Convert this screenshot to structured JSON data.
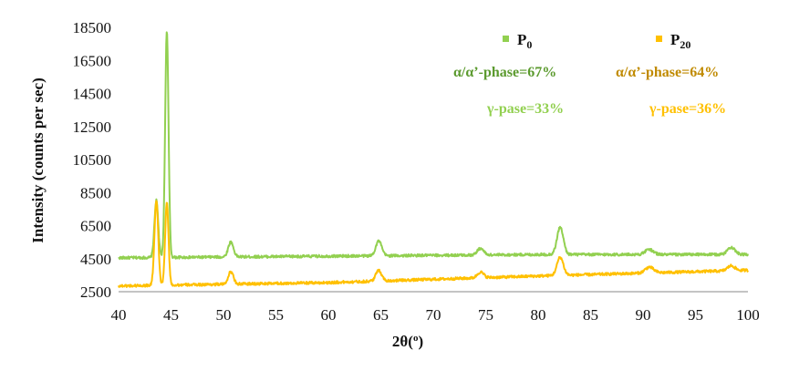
{
  "chart_data": {
    "type": "line",
    "xlabel_main": "2θ(",
    "xlabel_unit": "o",
    "xlabel_close": ")",
    "ylabel": "Intensity (counts per sec)",
    "xlim": [
      40,
      100
    ],
    "ylim": [
      2500,
      18500
    ],
    "x_ticks": [
      40,
      45,
      50,
      55,
      60,
      65,
      70,
      75,
      80,
      85,
      90,
      95,
      100
    ],
    "y_ticks": [
      2500,
      4500,
      6500,
      8500,
      10500,
      12500,
      14500,
      16500,
      18500
    ],
    "grid": false,
    "legend_position": "top-right",
    "series": [
      {
        "name_main": "P",
        "name_sub": "0",
        "color": "#92D050",
        "baseline": [
          [
            40,
            4550
          ],
          [
            60,
            4650
          ],
          [
            80,
            4750
          ],
          [
            100,
            4750
          ]
        ],
        "peaks": [
          {
            "x": 43.6,
            "height": 3450,
            "width": 0.18
          },
          {
            "x": 44.6,
            "height": 13750,
            "width": 0.16
          },
          {
            "x": 50.7,
            "height": 900,
            "width": 0.25
          },
          {
            "x": 64.8,
            "height": 900,
            "width": 0.28
          },
          {
            "x": 74.5,
            "height": 400,
            "width": 0.3
          },
          {
            "x": 82.1,
            "height": 1650,
            "width": 0.3
          },
          {
            "x": 90.6,
            "height": 300,
            "width": 0.4
          },
          {
            "x": 98.4,
            "height": 450,
            "width": 0.35
          }
        ]
      },
      {
        "name_main": "P",
        "name_sub": "20",
        "color": "#FFC000",
        "baseline": [
          [
            40,
            2850
          ],
          [
            60,
            3050
          ],
          [
            80,
            3450
          ],
          [
            100,
            3800
          ]
        ],
        "peaks": [
          {
            "x": 43.6,
            "height": 5100,
            "width": 0.18
          },
          {
            "x": 44.6,
            "height": 5000,
            "width": 0.16
          },
          {
            "x": 50.7,
            "height": 750,
            "width": 0.25
          },
          {
            "x": 64.8,
            "height": 650,
            "width": 0.28
          },
          {
            "x": 74.5,
            "height": 350,
            "width": 0.3
          },
          {
            "x": 82.1,
            "height": 1100,
            "width": 0.3
          },
          {
            "x": 90.6,
            "height": 350,
            "width": 0.4
          },
          {
            "x": 98.4,
            "height": 300,
            "width": 0.35
          }
        ]
      }
    ],
    "annotations": {
      "p0_phase_alpha": "α/α’-phase=67%",
      "p0_phase_gamma": "γ-pase=33%",
      "p20_phase_alpha": "α/α’-phase=64%",
      "p20_phase_gamma": "γ-pase=36%"
    },
    "annotation_colors": {
      "p0_alpha": "#5B9A2E",
      "p0_gamma": "#92D050",
      "p20_alpha": "#C08A00",
      "p20_gamma": "#FFC000"
    }
  }
}
